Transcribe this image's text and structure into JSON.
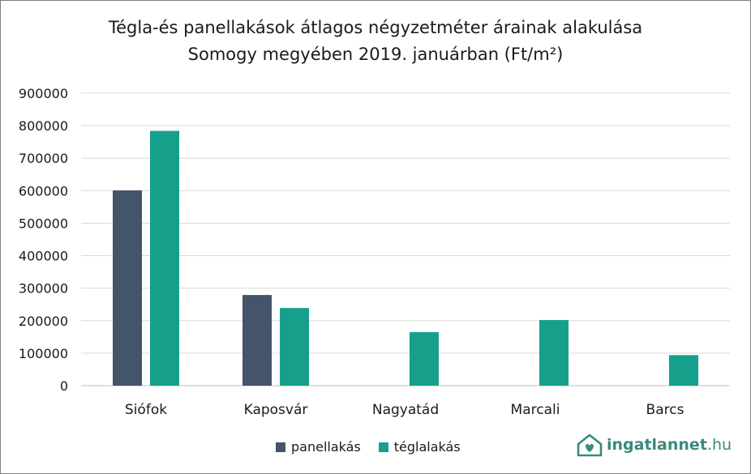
{
  "title_line1": "Tégla-és panellakások átlagos négyzetméter árainak alakulása",
  "title_line2": "Somogy megyében 2019. januárban (Ft/m²)",
  "colors": {
    "panel": "#44546a",
    "tegla": "#16a08c",
    "grid": "#d9d9d9",
    "logo": "#3a8a7a"
  },
  "logo": {
    "name": "ingatlannet",
    "tld": ".hu",
    "icon": "house-heart-icon"
  },
  "chart_data": {
    "type": "bar",
    "categories": [
      "Siófok",
      "Kaposvár",
      "Nagyatád",
      "Marcali",
      "Barcs"
    ],
    "series": [
      {
        "name": "panellakás",
        "values": [
          601000,
          279000,
          null,
          null,
          null
        ]
      },
      {
        "name": "téglalakás",
        "values": [
          784000,
          239000,
          165000,
          202000,
          94000
        ]
      }
    ],
    "ylim": [
      0,
      900000
    ],
    "yticks": [
      "0",
      "100000",
      "200000",
      "300000",
      "400000",
      "500000",
      "600000",
      "700000",
      "800000",
      "900000"
    ],
    "grid": true,
    "legend": "bottom"
  }
}
